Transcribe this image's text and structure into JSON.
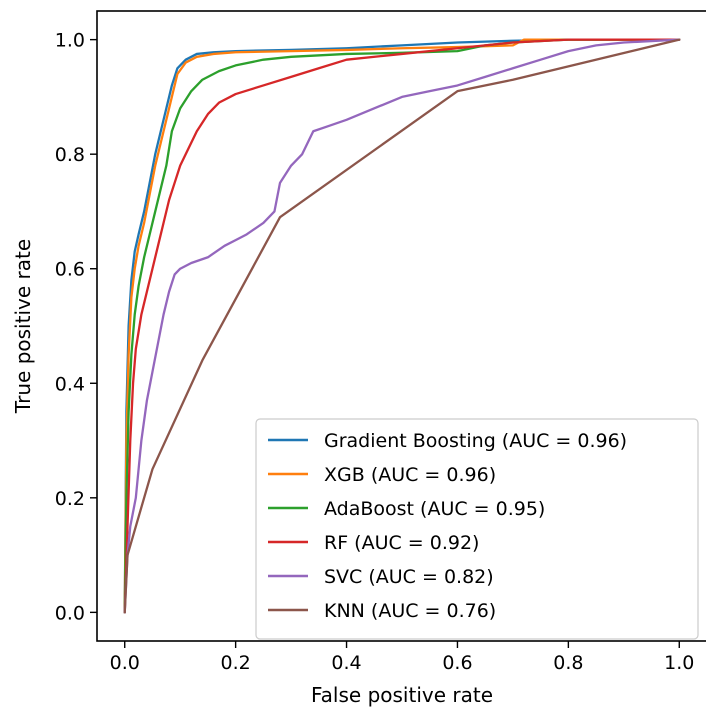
{
  "chart_data": {
    "type": "line",
    "title": "",
    "xlabel": "False positive rate",
    "ylabel": "True positive rate",
    "xlim": [
      -0.05,
      1.05
    ],
    "ylim": [
      -0.05,
      1.05
    ],
    "xticks": [
      0.0,
      0.2,
      0.4,
      0.6,
      0.8,
      1.0
    ],
    "yticks": [
      0.0,
      0.2,
      0.4,
      0.6,
      0.8,
      1.0
    ],
    "xtick_labels": [
      "0.0",
      "0.2",
      "0.4",
      "0.6",
      "0.8",
      "1.0"
    ],
    "ytick_labels": [
      "0.0",
      "0.2",
      "0.4",
      "0.6",
      "0.8",
      "1.0"
    ],
    "grid": false,
    "legend_position": "lower-right",
    "series": [
      {
        "name": "Gradient Boosting (AUC = 0.96)",
        "color": "#1f77b4",
        "x": [
          0.0,
          0.003,
          0.007,
          0.012,
          0.018,
          0.025,
          0.035,
          0.045,
          0.055,
          0.065,
          0.075,
          0.085,
          0.095,
          0.11,
          0.13,
          0.16,
          0.2,
          0.3,
          0.4,
          0.5,
          0.6,
          0.7,
          0.8,
          0.9,
          1.0
        ],
        "y": [
          0.0,
          0.35,
          0.5,
          0.58,
          0.63,
          0.66,
          0.7,
          0.75,
          0.8,
          0.84,
          0.88,
          0.92,
          0.95,
          0.965,
          0.975,
          0.978,
          0.98,
          0.982,
          0.985,
          0.99,
          0.995,
          0.998,
          1.0,
          1.0,
          1.0
        ]
      },
      {
        "name": "XGB (AUC = 0.96)",
        "color": "#ff7f0e",
        "x": [
          0.0,
          0.003,
          0.007,
          0.012,
          0.018,
          0.025,
          0.035,
          0.045,
          0.055,
          0.065,
          0.075,
          0.085,
          0.095,
          0.11,
          0.13,
          0.16,
          0.2,
          0.3,
          0.4,
          0.5,
          0.6,
          0.7,
          0.72,
          0.8,
          0.9,
          1.0
        ],
        "y": [
          0.0,
          0.3,
          0.45,
          0.55,
          0.6,
          0.64,
          0.68,
          0.73,
          0.78,
          0.82,
          0.86,
          0.9,
          0.94,
          0.96,
          0.97,
          0.975,
          0.978,
          0.98,
          0.982,
          0.985,
          0.987,
          0.99,
          1.0,
          1.0,
          1.0,
          1.0
        ]
      },
      {
        "name": "AdaBoost (AUC = 0.95)",
        "color": "#2ca02c",
        "x": [
          0.0,
          0.003,
          0.007,
          0.012,
          0.018,
          0.025,
          0.035,
          0.045,
          0.055,
          0.065,
          0.075,
          0.085,
          0.1,
          0.12,
          0.14,
          0.17,
          0.2,
          0.25,
          0.3,
          0.4,
          0.5,
          0.6,
          0.65,
          0.7,
          0.8,
          0.9,
          1.0
        ],
        "y": [
          0.0,
          0.2,
          0.35,
          0.45,
          0.52,
          0.57,
          0.62,
          0.66,
          0.7,
          0.74,
          0.78,
          0.84,
          0.88,
          0.91,
          0.93,
          0.945,
          0.955,
          0.965,
          0.97,
          0.975,
          0.977,
          0.98,
          0.99,
          0.995,
          1.0,
          1.0,
          1.0
        ]
      },
      {
        "name": "RF (AUC = 0.92)",
        "color": "#d62728",
        "x": [
          0.0,
          0.005,
          0.01,
          0.015,
          0.02,
          0.03,
          0.04,
          0.05,
          0.06,
          0.07,
          0.08,
          0.09,
          0.1,
          0.11,
          0.13,
          0.15,
          0.17,
          0.2,
          0.25,
          0.3,
          0.35,
          0.4,
          0.5,
          0.6,
          0.7,
          0.8,
          0.9,
          1.0
        ],
        "y": [
          0.0,
          0.15,
          0.3,
          0.4,
          0.46,
          0.52,
          0.56,
          0.6,
          0.64,
          0.68,
          0.72,
          0.75,
          0.78,
          0.8,
          0.84,
          0.87,
          0.89,
          0.905,
          0.92,
          0.935,
          0.95,
          0.965,
          0.975,
          0.985,
          0.995,
          1.0,
          1.0,
          1.0
        ]
      },
      {
        "name": "SVC (AUC = 0.82)",
        "color": "#9467bd",
        "x": [
          0.0,
          0.005,
          0.01,
          0.02,
          0.03,
          0.04,
          0.05,
          0.06,
          0.07,
          0.08,
          0.09,
          0.1,
          0.12,
          0.15,
          0.18,
          0.2,
          0.22,
          0.25,
          0.27,
          0.28,
          0.3,
          0.32,
          0.34,
          0.37,
          0.4,
          0.45,
          0.5,
          0.55,
          0.6,
          0.65,
          0.7,
          0.75,
          0.8,
          0.85,
          0.9,
          1.0
        ],
        "y": [
          0.0,
          0.1,
          0.15,
          0.2,
          0.3,
          0.37,
          0.42,
          0.47,
          0.52,
          0.56,
          0.59,
          0.6,
          0.61,
          0.62,
          0.64,
          0.65,
          0.66,
          0.68,
          0.7,
          0.75,
          0.78,
          0.8,
          0.84,
          0.85,
          0.86,
          0.88,
          0.9,
          0.91,
          0.92,
          0.935,
          0.95,
          0.965,
          0.98,
          0.99,
          0.995,
          1.0
        ]
      },
      {
        "name": "KNN (AUC = 0.76)",
        "color": "#8c564b",
        "x": [
          0.0,
          0.005,
          0.05,
          0.14,
          0.28,
          0.6,
          0.7,
          1.0
        ],
        "y": [
          0.0,
          0.1,
          0.25,
          0.44,
          0.69,
          0.91,
          0.93,
          1.0
        ]
      }
    ]
  }
}
